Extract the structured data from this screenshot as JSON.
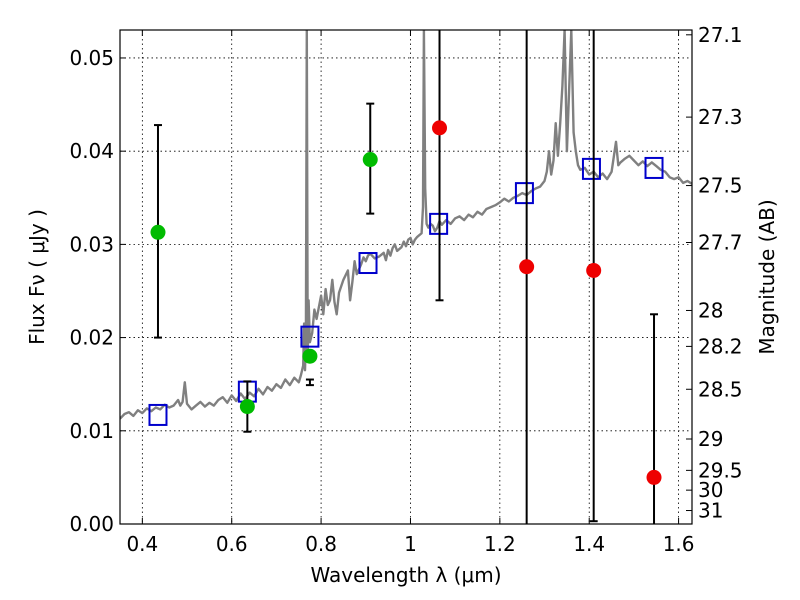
{
  "chart_data": {
    "type": "scatter",
    "xlabel": "Wavelength  λ (μm)",
    "ylabel": "Flux  Fν  ( μJy )",
    "y2label": "Magnitude (AB)",
    "xlim": [
      0.35,
      1.63
    ],
    "ylim": [
      0.0,
      0.053
    ],
    "grid": true,
    "x_ticks": [
      {
        "value": 0.4,
        "label": "0.4"
      },
      {
        "value": 0.6,
        "label": "0.6"
      },
      {
        "value": 0.8,
        "label": "0.8"
      },
      {
        "value": 1.0,
        "label": "1"
      },
      {
        "value": 1.2,
        "label": "1.2"
      },
      {
        "value": 1.4,
        "label": "1.4"
      },
      {
        "value": 1.6,
        "label": "1.6"
      }
    ],
    "y_ticks": [
      {
        "value": 0.0,
        "label": "0.00"
      },
      {
        "value": 0.01,
        "label": "0.01"
      },
      {
        "value": 0.02,
        "label": "0.02"
      },
      {
        "value": 0.03,
        "label": "0.03"
      },
      {
        "value": 0.04,
        "label": "0.04"
      },
      {
        "value": 0.05,
        "label": "0.05"
      }
    ],
    "y2_ticks": [
      {
        "value": 27.1,
        "label": "27.1"
      },
      {
        "value": 27.3,
        "label": "27.3"
      },
      {
        "value": 27.5,
        "label": "27.5"
      },
      {
        "value": 27.7,
        "label": "27.7"
      },
      {
        "value": 28.0,
        "label": "28"
      },
      {
        "value": 28.2,
        "label": "28.2"
      },
      {
        "value": 28.5,
        "label": "28.5"
      },
      {
        "value": 29.0,
        "label": "29"
      },
      {
        "value": 29.5,
        "label": "29.5"
      },
      {
        "value": 30.0,
        "label": "30"
      },
      {
        "value": 31.0,
        "label": "31"
      }
    ],
    "series": [
      {
        "kind": "line",
        "color": "#808080",
        "points": [
          [
            0.35,
            0.0113
          ],
          [
            0.36,
            0.0118
          ],
          [
            0.37,
            0.012
          ],
          [
            0.38,
            0.0116
          ],
          [
            0.39,
            0.0122
          ],
          [
            0.4,
            0.0119
          ],
          [
            0.41,
            0.0124
          ],
          [
            0.42,
            0.0121
          ],
          [
            0.43,
            0.0125
          ],
          [
            0.44,
            0.0123
          ],
          [
            0.45,
            0.0128
          ],
          [
            0.46,
            0.0125
          ],
          [
            0.47,
            0.0127
          ],
          [
            0.48,
            0.0133
          ],
          [
            0.485,
            0.0127
          ],
          [
            0.49,
            0.0131
          ],
          [
            0.495,
            0.0152
          ],
          [
            0.5,
            0.0129
          ],
          [
            0.51,
            0.0123
          ],
          [
            0.52,
            0.0127
          ],
          [
            0.53,
            0.0131
          ],
          [
            0.54,
            0.0126
          ],
          [
            0.55,
            0.013
          ],
          [
            0.56,
            0.0127
          ],
          [
            0.57,
            0.0133
          ],
          [
            0.58,
            0.0136
          ],
          [
            0.59,
            0.013
          ],
          [
            0.6,
            0.0138
          ],
          [
            0.61,
            0.0132
          ],
          [
            0.62,
            0.014
          ],
          [
            0.63,
            0.0134
          ],
          [
            0.64,
            0.0141
          ],
          [
            0.65,
            0.0137
          ],
          [
            0.66,
            0.0145
          ],
          [
            0.67,
            0.0139
          ],
          [
            0.68,
            0.0147
          ],
          [
            0.69,
            0.0143
          ],
          [
            0.7,
            0.015
          ],
          [
            0.71,
            0.0146
          ],
          [
            0.72,
            0.0155
          ],
          [
            0.73,
            0.0149
          ],
          [
            0.74,
            0.0157
          ],
          [
            0.75,
            0.0152
          ],
          [
            0.755,
            0.016
          ],
          [
            0.76,
            0.017
          ],
          [
            0.762,
            0.0215
          ],
          [
            0.764,
            0.0165
          ],
          [
            0.766,
            0.02
          ],
          [
            0.768,
            0.053
          ],
          [
            0.77,
            0.018
          ],
          [
            0.772,
            0.024
          ],
          [
            0.775,
            0.0195
          ],
          [
            0.78,
            0.0205
          ],
          [
            0.785,
            0.023
          ],
          [
            0.79,
            0.022
          ],
          [
            0.8,
            0.0245
          ],
          [
            0.805,
            0.0225
          ],
          [
            0.81,
            0.0252
          ],
          [
            0.815,
            0.0235
          ],
          [
            0.82,
            0.024
          ],
          [
            0.825,
            0.0262
          ],
          [
            0.83,
            0.0238
          ],
          [
            0.835,
            0.0225
          ],
          [
            0.84,
            0.0248
          ],
          [
            0.85,
            0.0262
          ],
          [
            0.86,
            0.0272
          ],
          [
            0.865,
            0.024
          ],
          [
            0.87,
            0.026
          ],
          [
            0.875,
            0.0282
          ],
          [
            0.88,
            0.0268
          ],
          [
            0.89,
            0.0279
          ],
          [
            0.895,
            0.0286
          ],
          [
            0.9,
            0.0282
          ],
          [
            0.905,
            0.0288
          ],
          [
            0.91,
            0.029
          ],
          [
            0.92,
            0.0285
          ],
          [
            0.93,
            0.0287
          ],
          [
            0.94,
            0.0291
          ],
          [
            0.945,
            0.0283
          ],
          [
            0.95,
            0.0294
          ],
          [
            0.955,
            0.0288
          ],
          [
            0.96,
            0.0296
          ],
          [
            0.965,
            0.03
          ],
          [
            0.97,
            0.0293
          ],
          [
            0.98,
            0.0297
          ],
          [
            0.985,
            0.0303
          ],
          [
            0.99,
            0.0298
          ],
          [
            0.995,
            0.0305
          ],
          [
            1.0,
            0.0307
          ],
          [
            1.005,
            0.03
          ],
          [
            1.01,
            0.0305
          ],
          [
            1.015,
            0.0308
          ],
          [
            1.02,
            0.031
          ],
          [
            1.025,
            0.0312
          ],
          [
            1.028,
            0.034
          ],
          [
            1.03,
            0.053
          ],
          [
            1.033,
            0.036
          ],
          [
            1.036,
            0.0322
          ],
          [
            1.04,
            0.0318
          ],
          [
            1.045,
            0.0322
          ],
          [
            1.05,
            0.032
          ],
          [
            1.055,
            0.0314
          ],
          [
            1.06,
            0.0318
          ],
          [
            1.065,
            0.0325
          ],
          [
            1.07,
            0.0321
          ],
          [
            1.08,
            0.0326
          ],
          [
            1.09,
            0.0322
          ],
          [
            1.1,
            0.0328
          ],
          [
            1.11,
            0.033
          ],
          [
            1.12,
            0.0326
          ],
          [
            1.13,
            0.0332
          ],
          [
            1.14,
            0.0329
          ],
          [
            1.15,
            0.0335
          ],
          [
            1.16,
            0.0332
          ],
          [
            1.17,
            0.0338
          ],
          [
            1.18,
            0.034
          ],
          [
            1.19,
            0.0342
          ],
          [
            1.2,
            0.0345
          ],
          [
            1.21,
            0.0349
          ],
          [
            1.22,
            0.0346
          ],
          [
            1.23,
            0.035
          ],
          [
            1.24,
            0.0352
          ],
          [
            1.25,
            0.0355
          ],
          [
            1.26,
            0.0353
          ],
          [
            1.27,
            0.0357
          ],
          [
            1.28,
            0.036
          ],
          [
            1.29,
            0.0362
          ],
          [
            1.3,
            0.0368
          ],
          [
            1.305,
            0.0378
          ],
          [
            1.31,
            0.04
          ],
          [
            1.315,
            0.0375
          ],
          [
            1.32,
            0.039
          ],
          [
            1.325,
            0.043
          ],
          [
            1.33,
            0.0395
          ],
          [
            1.335,
            0.043
          ],
          [
            1.34,
            0.047
          ],
          [
            1.345,
            0.053
          ],
          [
            1.35,
            0.04
          ],
          [
            1.355,
            0.0465
          ],
          [
            1.36,
            0.053
          ],
          [
            1.365,
            0.042
          ],
          [
            1.37,
            0.04
          ],
          [
            1.375,
            0.0385
          ],
          [
            1.38,
            0.038
          ],
          [
            1.39,
            0.0382
          ],
          [
            1.4,
            0.0375
          ],
          [
            1.41,
            0.0378
          ],
          [
            1.42,
            0.0372
          ],
          [
            1.43,
            0.0376
          ],
          [
            1.44,
            0.037
          ],
          [
            1.45,
            0.0378
          ],
          [
            1.46,
            0.041
          ],
          [
            1.465,
            0.0385
          ],
          [
            1.47,
            0.0388
          ],
          [
            1.48,
            0.0392
          ],
          [
            1.49,
            0.0395
          ],
          [
            1.5,
            0.039
          ],
          [
            1.51,
            0.0385
          ],
          [
            1.52,
            0.0389
          ],
          [
            1.53,
            0.0384
          ],
          [
            1.54,
            0.0388
          ],
          [
            1.55,
            0.0384
          ],
          [
            1.56,
            0.038
          ],
          [
            1.57,
            0.0378
          ],
          [
            1.58,
            0.0372
          ],
          [
            1.59,
            0.037
          ],
          [
            1.6,
            0.0372
          ],
          [
            1.61,
            0.0366
          ],
          [
            1.62,
            0.0368
          ],
          [
            1.63,
            0.0365
          ]
        ]
      },
      {
        "kind": "markers",
        "marker": "open-square",
        "color": "#0000cc",
        "x": [
          0.435,
          0.635,
          0.775,
          0.905,
          1.063,
          1.255,
          1.405,
          1.545
        ],
        "y": [
          0.0117,
          0.0142,
          0.0201,
          0.028,
          0.0322,
          0.0355,
          0.0381,
          0.0382
        ]
      },
      {
        "kind": "markers",
        "marker": "filled-circle",
        "color": "#00bb00",
        "x": [
          0.435,
          0.635,
          0.775,
          0.91
        ],
        "y": [
          0.0313,
          0.0126,
          0.018,
          0.0391
        ],
        "yerr_low": [
          0.02,
          0.0099,
          0.0149,
          0.0333
        ],
        "yerr_high": [
          0.0428,
          0.0153,
          0.0155,
          0.0451
        ]
      },
      {
        "kind": "markers",
        "marker": "filled-circle",
        "color": "#ee0000",
        "x": [
          1.065,
          1.26,
          1.41,
          1.545
        ],
        "y": [
          0.0425,
          0.0276,
          0.0272,
          0.005
        ],
        "yerr_low": [
          0.024,
          0.0,
          0.0003,
          0.0
        ],
        "yerr_high": [
          0.053,
          0.053,
          0.053,
          0.0225
        ]
      }
    ]
  }
}
